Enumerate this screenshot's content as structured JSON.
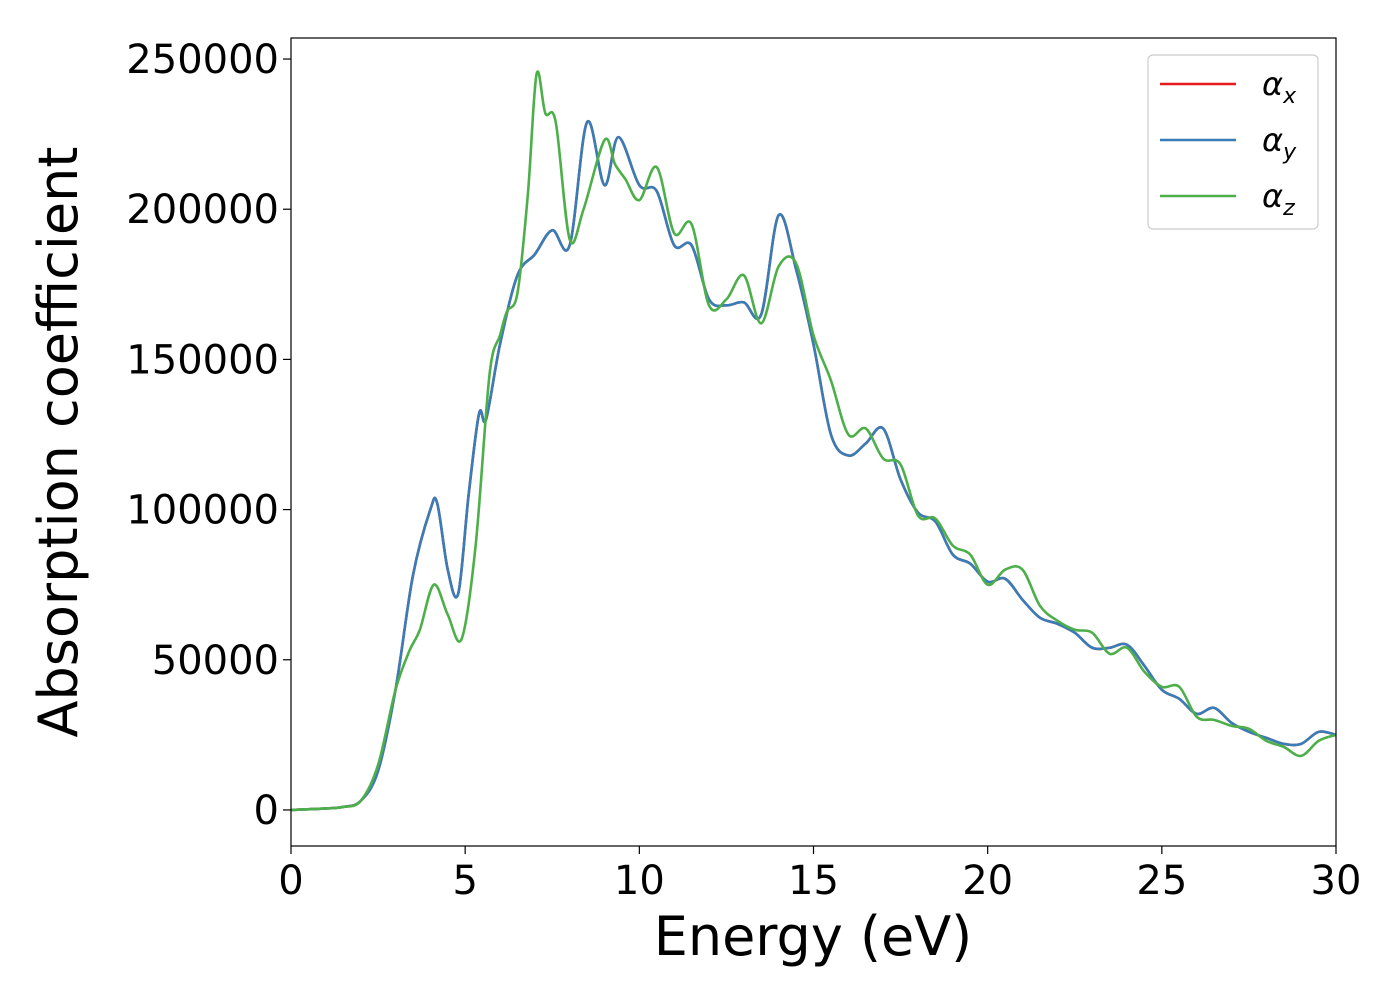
{
  "chart_data": {
    "type": "line",
    "xlabel": "Energy (eV)",
    "ylabel": "Absorption coefficient",
    "xlim": [
      0,
      30
    ],
    "ylim": [
      -12000,
      257000
    ],
    "xticks": [
      0,
      5,
      10,
      15,
      20,
      25,
      30
    ],
    "xtick_labels": [
      "0",
      "5",
      "10",
      "15",
      "20",
      "25",
      "30"
    ],
    "yticks": [
      0,
      50000,
      100000,
      150000,
      200000,
      250000
    ],
    "ytick_labels": [
      "0",
      "50000",
      "100000",
      "150000",
      "200000",
      "250000"
    ],
    "grid": false,
    "legend_position": "top-right",
    "series": [
      {
        "name": "α_x",
        "legend_base": "α",
        "legend_sub": "x",
        "color": "#e41a1c",
        "x": [
          0,
          1,
          1.5,
          2,
          2.5,
          3,
          3.5,
          4,
          4.2,
          4.5,
          4.8,
          5.1,
          5.4,
          5.6,
          6,
          6.5,
          7,
          7.5,
          8,
          8.5,
          9,
          9.4,
          10,
          10.5,
          11,
          11.5,
          12,
          12.5,
          13,
          13.5,
          14,
          14.5,
          15,
          15.5,
          16,
          16.5,
          17,
          17.5,
          18,
          18.5,
          19,
          19.5,
          20,
          20.5,
          21,
          21.5,
          22,
          22.5,
          23,
          23.5,
          24,
          24.5,
          25,
          25.5,
          26,
          26.5,
          27,
          27.5,
          28,
          28.5,
          29,
          29.5,
          30
        ],
        "values": [
          0,
          500,
          1000,
          3000,
          13000,
          40000,
          78000,
          100000,
          102000,
          80000,
          72000,
          105000,
          132000,
          130000,
          155000,
          178000,
          185000,
          193000,
          188000,
          229000,
          208000,
          224000,
          208000,
          206000,
          188000,
          188000,
          170000,
          168000,
          169000,
          165000,
          198000,
          180000,
          155000,
          125000,
          118000,
          122000,
          127000,
          110000,
          99000,
          96000,
          85000,
          82000,
          76000,
          77000,
          70000,
          64000,
          62000,
          59000,
          54000,
          54000,
          55000,
          48000,
          40000,
          37000,
          32000,
          34000,
          29000,
          26000,
          24000,
          22000,
          22000,
          26000,
          25000
        ]
      },
      {
        "name": "α_y",
        "legend_base": "α",
        "legend_sub": "y",
        "color": "#377eb8",
        "x": [
          0,
          1,
          1.5,
          2,
          2.5,
          3,
          3.5,
          4,
          4.2,
          4.5,
          4.8,
          5.1,
          5.4,
          5.6,
          6,
          6.5,
          7,
          7.5,
          8,
          8.5,
          9,
          9.4,
          10,
          10.5,
          11,
          11.5,
          12,
          12.5,
          13,
          13.5,
          14,
          14.5,
          15,
          15.5,
          16,
          16.5,
          17,
          17.5,
          18,
          18.5,
          19,
          19.5,
          20,
          20.5,
          21,
          21.5,
          22,
          22.5,
          23,
          23.5,
          24,
          24.5,
          25,
          25.5,
          26,
          26.5,
          27,
          27.5,
          28,
          28.5,
          29,
          29.5,
          30
        ],
        "values": [
          0,
          500,
          1000,
          3000,
          13000,
          40000,
          78000,
          100000,
          102000,
          80000,
          72000,
          105000,
          132000,
          130000,
          155000,
          178000,
          185000,
          193000,
          188000,
          229000,
          208000,
          224000,
          208000,
          206000,
          188000,
          188000,
          170000,
          168000,
          169000,
          165000,
          198000,
          180000,
          155000,
          125000,
          118000,
          122000,
          127000,
          110000,
          99000,
          96000,
          85000,
          82000,
          76000,
          77000,
          70000,
          64000,
          62000,
          59000,
          54000,
          54000,
          55000,
          48000,
          40000,
          37000,
          32000,
          34000,
          29000,
          26000,
          24000,
          22000,
          22000,
          26000,
          25000
        ]
      },
      {
        "name": "α_z",
        "legend_base": "α",
        "legend_sub": "z",
        "color": "#4daf4a",
        "x": [
          0,
          1,
          1.5,
          2,
          2.5,
          3,
          3.4,
          3.7,
          4.1,
          4.5,
          4.9,
          5.3,
          5.7,
          6,
          6.2,
          6.5,
          6.8,
          7.05,
          7.3,
          7.6,
          8,
          8.4,
          9,
          9.3,
          9.6,
          10,
          10.5,
          11,
          11.5,
          12,
          12.5,
          13,
          13.5,
          14,
          14.5,
          15,
          15.5,
          16,
          16.5,
          17,
          17.5,
          18,
          18.5,
          19,
          19.5,
          20,
          20.5,
          21,
          21.5,
          22,
          22.5,
          23,
          23.5,
          24,
          24.5,
          25,
          25.5,
          26,
          26.5,
          27,
          27.5,
          28,
          28.5,
          29,
          29.5,
          30
        ],
        "values": [
          0,
          500,
          1000,
          3000,
          15000,
          40000,
          53000,
          60000,
          75000,
          65000,
          57000,
          88000,
          145000,
          158000,
          166000,
          172000,
          205000,
          245000,
          232000,
          229000,
          190000,
          200000,
          223000,
          215000,
          210000,
          203000,
          214000,
          192000,
          195000,
          168000,
          170000,
          178000,
          162000,
          181000,
          182000,
          158000,
          143000,
          125000,
          127000,
          117000,
          115000,
          98000,
          97000,
          88000,
          85000,
          75000,
          80000,
          80000,
          68000,
          63000,
          60000,
          59000,
          52000,
          54000,
          46000,
          41000,
          41000,
          31000,
          30000,
          28000,
          27000,
          23000,
          21000,
          18000,
          23000,
          25000
        ]
      }
    ]
  }
}
